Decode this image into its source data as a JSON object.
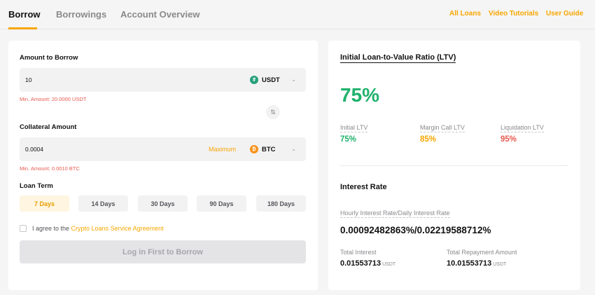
{
  "nav": {
    "tabs": [
      "Borrow",
      "Borrowings",
      "Account Overview"
    ],
    "links": [
      "All Loans",
      "Video Tutorials",
      "User Guide"
    ]
  },
  "borrow_form": {
    "amount_label": "Amount to Borrow",
    "amount_value": "10",
    "amount_coin": "USDT",
    "amount_error": "Min. Amount: 20.0000 USDT",
    "collateral_label": "Collateral Amount",
    "collateral_value": "0.0004",
    "maximum_label": "Maximum",
    "collateral_coin": "BTC",
    "collateral_error": "Min. Amount: 0.0010 BTC",
    "term_label": "Loan Term",
    "terms": [
      "7 Days",
      "14 Days",
      "30 Days",
      "90 Days",
      "180 Days"
    ],
    "selected_term": "7 Days",
    "agree_text": "I agree to the ",
    "agree_link": "Crypto Loans Service Agreement",
    "submit_label": "Log in First to Borrow"
  },
  "ltv": {
    "title": "Initial Loan-to-Value Ratio (LTV)",
    "big_value": "75%",
    "stats": [
      {
        "label": "Initial LTV",
        "value": "75%",
        "color": "#20b26c"
      },
      {
        "label": "Margin Call LTV",
        "value": "85%",
        "color": "#f7a600"
      },
      {
        "label": "Liquidation LTV",
        "value": "95%",
        "color": "#e85a4f"
      }
    ]
  },
  "interest": {
    "title": "Interest Rate",
    "rate_label": "Hourly Interest Rate/Daily Interest Rate",
    "rate_value": "0.00092482863%/0.02219588712%",
    "total_interest_label": "Total Interest",
    "total_interest_value": "0.01553713",
    "total_repayment_label": "Total Repayment Amount",
    "total_repayment_value": "10.01553713",
    "unit": "USDT"
  },
  "icons": {
    "usdt": "tether-coin-icon",
    "btc": "bitcoin-coin-icon",
    "swap": "swap-arrows-icon",
    "chevron": "chevron-down-icon"
  }
}
